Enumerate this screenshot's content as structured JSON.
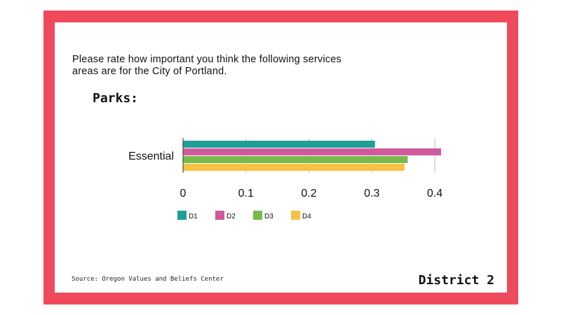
{
  "question": "Please rate how important you think the following services areas are for the City of Portland.",
  "subject": "Parks:",
  "source": "Source: Oregon Values and Beliefs Center",
  "district": "District 2",
  "chart_data": {
    "type": "bar",
    "orientation": "horizontal",
    "categories": [
      "Essential"
    ],
    "series": [
      {
        "name": "D1",
        "values": [
          0.305
        ],
        "color": "#1f9e97"
      },
      {
        "name": "D2",
        "values": [
          0.41
        ],
        "color": "#d05a9b"
      },
      {
        "name": "D3",
        "values": [
          0.357
        ],
        "color": "#79b84a"
      },
      {
        "name": "D4",
        "values": [
          0.352
        ],
        "color": "#f7c142"
      }
    ],
    "xticks": [
      "0",
      "0.1",
      "0.2",
      "0.3",
      "0.4"
    ],
    "xlim": [
      0,
      0.4
    ],
    "grid": true,
    "legend_position": "bottom"
  }
}
